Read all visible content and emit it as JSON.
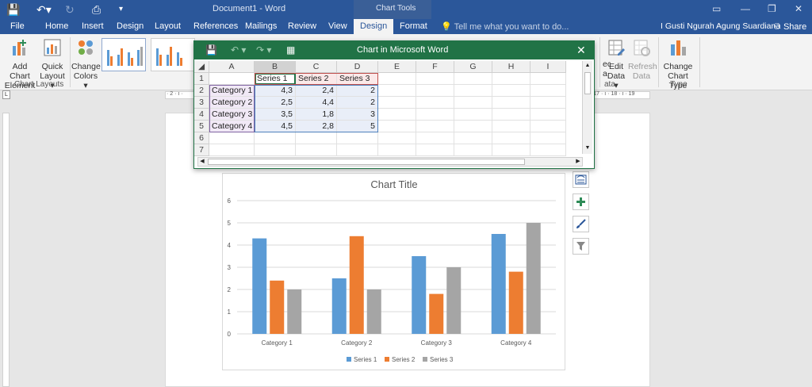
{
  "titlebar": {
    "doc_title": "Document1 - Word",
    "chart_tools": "Chart Tools"
  },
  "tabs": [
    "File",
    "Home",
    "Insert",
    "Design",
    "Layout",
    "References",
    "Mailings",
    "Review",
    "View",
    "Design",
    "Format"
  ],
  "active_tab_index": 9,
  "tell_me": "Tell me what you want to do...",
  "user": "I Gusti Ngurah Agung Suardiana",
  "share": "Share",
  "ribbon": {
    "add_chart_1": "Add Chart",
    "add_chart_2": "Element ▾",
    "quick_layout_1": "Quick",
    "quick_layout_2": "Layout ▾",
    "change_colors_1": "Change",
    "change_colors_2": "Colors ▾",
    "chart_layouts_group": "Chart Layouts",
    "select_data_1": "ect",
    "select_data_2": "a",
    "edit_data_1": "Edit",
    "edit_data_2": "Data ▾",
    "refresh_data_1": "Refresh",
    "refresh_data_2": "Data",
    "data_group": "ata",
    "change_type_1": "Change",
    "change_type_2": "Chart Type",
    "type_group": "Type"
  },
  "ruler": {
    "top_left": "· 2 · ı ·",
    "top_right": "· 17 · ı · 18 · ı · 19"
  },
  "excel": {
    "title": "Chart in Microsoft Word",
    "close": "✕",
    "columns": [
      "A",
      "B",
      "C",
      "D",
      "E",
      "F",
      "G",
      "H",
      "I"
    ],
    "rows": [
      {
        "n": "1",
        "cells": [
          "",
          "Series 1",
          "Series 2",
          "Series 3"
        ]
      },
      {
        "n": "2",
        "cells": [
          "Category 1",
          "4,3",
          "2,4",
          "2"
        ]
      },
      {
        "n": "3",
        "cells": [
          "Category 2",
          "2,5",
          "4,4",
          "2"
        ]
      },
      {
        "n": "4",
        "cells": [
          "Category 3",
          "3,5",
          "1,8",
          "3"
        ]
      },
      {
        "n": "5",
        "cells": [
          "Category 4",
          "4,5",
          "2,8",
          "5"
        ]
      },
      {
        "n": "6",
        "cells": [
          "",
          "",
          "",
          ""
        ]
      },
      {
        "n": "7",
        "cells": [
          "",
          "",
          "",
          ""
        ]
      }
    ]
  },
  "colors": {
    "word_blue": "#2b579a",
    "excel_green": "#217346",
    "series1": "#5b9bd5",
    "series2": "#ed7d31",
    "series3": "#a5a5a5"
  },
  "chart_data": {
    "type": "bar",
    "title": "Chart Title",
    "categories": [
      "Category 1",
      "Category 2",
      "Category 3",
      "Category 4"
    ],
    "series": [
      {
        "name": "Series 1",
        "values": [
          4.3,
          2.5,
          3.5,
          4.5
        ]
      },
      {
        "name": "Series 2",
        "values": [
          2.4,
          4.4,
          1.8,
          2.8
        ]
      },
      {
        "name": "Series 3",
        "values": [
          2,
          2,
          3,
          5
        ]
      }
    ],
    "ylim": [
      0,
      6
    ],
    "yticks": [
      "0",
      "1",
      "2",
      "3",
      "4",
      "5",
      "6"
    ],
    "grid": true,
    "legend": "bottom"
  }
}
